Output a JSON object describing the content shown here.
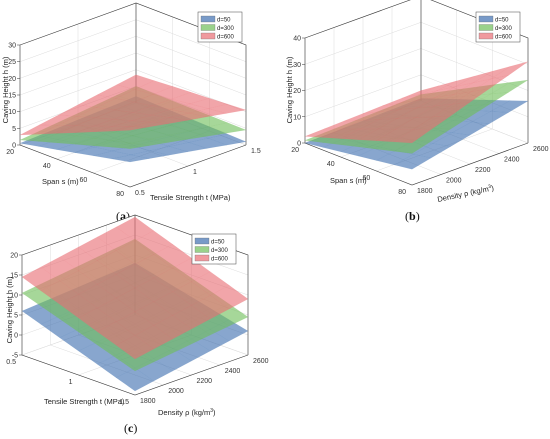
{
  "chart_data": [
    {
      "type": "surface3d",
      "panel_label": "a",
      "caption": "(a)",
      "xlabel": "Span s (m)",
      "ylabel": "Tensile Strength t (MPa)",
      "zlabel": "Caving Height h (m)",
      "x_ticks": [
        "20",
        "40",
        "60",
        "80"
      ],
      "y_ticks": [
        "0.5",
        "1",
        "1.5"
      ],
      "z_ticks": [
        "0",
        "5",
        "10",
        "15",
        "20",
        "25",
        "30"
      ],
      "xlim": [
        20,
        80
      ],
      "ylim": [
        0.5,
        1.5
      ],
      "zlim": [
        0,
        30
      ],
      "grid": true,
      "legend_position": "top-right",
      "series": [
        {
          "name": "d=50",
          "color": "#3f6fb0",
          "corners": {
            "x_min_y_min": 0.5,
            "x_max_y_min": 7.5,
            "x_min_y_max": 2.0,
            "x_max_y_max": 1.0
          }
        },
        {
          "name": "d=300",
          "color": "#6fbf5a",
          "corners": {
            "x_min_y_min": 1.5,
            "x_max_y_min": 11.5,
            "x_min_y_max": 5.0,
            "x_max_y_max": 4.5
          }
        },
        {
          "name": "d=600",
          "color": "#e96d75",
          "corners": {
            "x_min_y_min": 3.0,
            "x_max_y_min": 17.0,
            "x_min_y_max": 8.5,
            "x_max_y_max": 10.5
          }
        }
      ]
    },
    {
      "type": "surface3d",
      "panel_label": "b",
      "caption": "(b)",
      "xlabel": "Span s (m)",
      "ylabel": "Density ρ (kg/m³)",
      "zlabel": "Caving Height h (m)",
      "x_ticks": [
        "20",
        "40",
        "60",
        "80"
      ],
      "y_ticks": [
        "1800",
        "2000",
        "2200",
        "2400",
        "2600"
      ],
      "z_ticks": [
        "0",
        "10",
        "20",
        "30",
        "40"
      ],
      "xlim": [
        20,
        80
      ],
      "ylim": [
        1800,
        2600
      ],
      "zlim": [
        0,
        40
      ],
      "grid": true,
      "legend_position": "top-right",
      "series": [
        {
          "name": "d=50",
          "color": "#3f6fb0",
          "corners": {
            "x_min_y_min": 0.0,
            "x_max_y_min": 6.0,
            "x_min_y_max": 1.0,
            "x_max_y_max": 16.0
          }
        },
        {
          "name": "d=300",
          "color": "#6fbf5a",
          "corners": {
            "x_min_y_min": 1.0,
            "x_max_y_min": 12.0,
            "x_min_y_max": 2.5,
            "x_max_y_max": 24.0
          }
        },
        {
          "name": "d=600",
          "color": "#e96d75",
          "corners": {
            "x_min_y_min": 2.5,
            "x_max_y_min": 16.0,
            "x_min_y_max": 4.0,
            "x_max_y_max": 31.0
          }
        }
      ]
    },
    {
      "type": "surface3d",
      "panel_label": "c",
      "caption": "(c)",
      "xlabel": "Tensile Strength t (MPa)",
      "ylabel": "Density ρ (kg/m³)",
      "zlabel": "Caving Height h (m)",
      "x_ticks": [
        "0.5",
        "1",
        "1.5"
      ],
      "y_ticks": [
        "1800",
        "2000",
        "2200",
        "2400",
        "2600"
      ],
      "z_ticks": [
        "-5",
        "0",
        "5",
        "10",
        "15",
        "20"
      ],
      "xlim": [
        0.5,
        1.5
      ],
      "ylim": [
        1800,
        2600
      ],
      "zlim": [
        -5,
        20
      ],
      "grid": true,
      "legend_position": "top-right",
      "series": [
        {
          "name": "d=50",
          "color": "#3f6fb0",
          "corners": {
            "x_min_y_min": 6.0,
            "x_max_y_min": -4.0,
            "x_min_y_max": 8.0,
            "x_max_y_max": 1.0
          }
        },
        {
          "name": "d=300",
          "color": "#6fbf5a",
          "corners": {
            "x_min_y_min": 10.5,
            "x_max_y_min": 1.0,
            "x_min_y_max": 14.0,
            "x_max_y_max": 4.5
          }
        },
        {
          "name": "d=600",
          "color": "#e96d75",
          "corners": {
            "x_min_y_min": 14.5,
            "x_max_y_min": 4.0,
            "x_min_y_max": 19.5,
            "x_max_y_max": 9.0
          }
        }
      ]
    }
  ]
}
